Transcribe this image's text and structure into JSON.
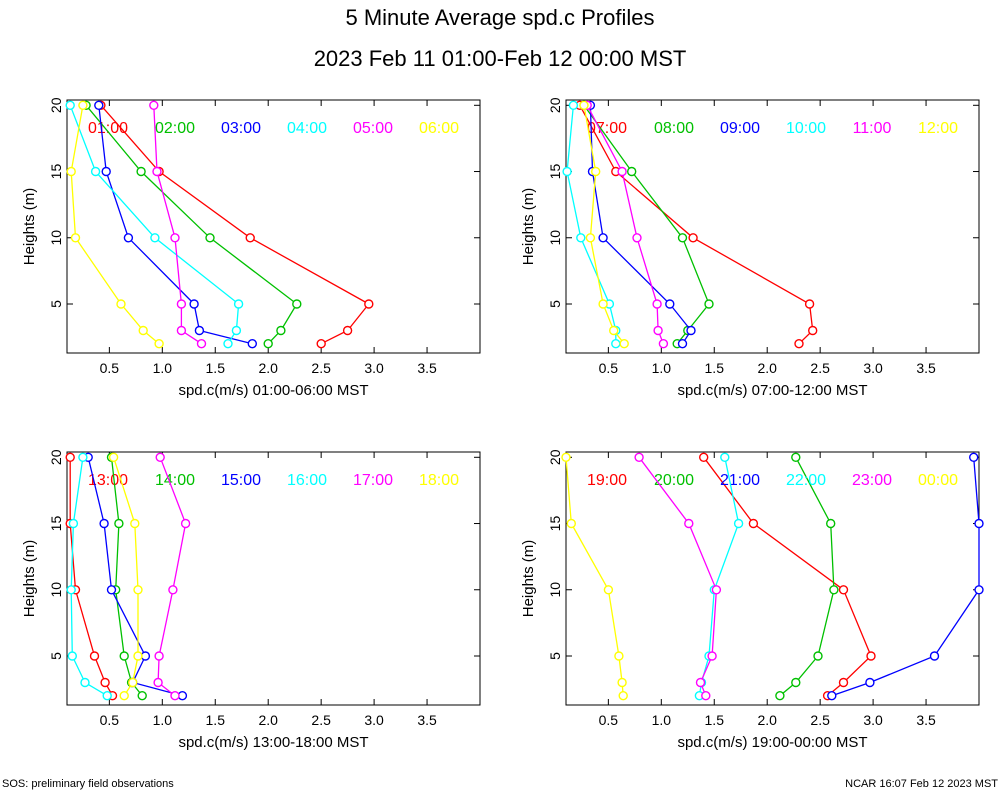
{
  "title": "5 Minute Average spd.c Profiles",
  "subtitle": "2023 Feb 11 01:00-Feb 12 00:00 MST",
  "footer_left": "SOS: preliminary field observations",
  "footer_right": "NCAR 16:07 Feb 12 2023 MST",
  "colors": [
    "#ff0000",
    "#00c000",
    "#0000ff",
    "#00ffff",
    "#ff00ff",
    "#ffff00"
  ],
  "chart_data": [
    {
      "type": "line",
      "xlabel": "spd.c(m/s) 01:00-06:00 MST",
      "ylabel": "Heights (m)",
      "xlim": [
        0.1,
        4.0
      ],
      "ylim": [
        1.3,
        20.4
      ],
      "xticks": [
        "0.5",
        "1.0",
        "1.5",
        "2.0",
        "2.5",
        "3.0",
        "3.5"
      ],
      "yticks": [
        "5",
        "10",
        "15",
        "20"
      ],
      "heights": [
        2,
        3,
        5,
        10,
        15,
        20
      ],
      "series": [
        {
          "name": "01:00",
          "values": [
            2.5,
            2.75,
            2.95,
            1.83,
            0.97,
            0.42
          ]
        },
        {
          "name": "02:00",
          "values": [
            2.0,
            2.12,
            2.27,
            1.45,
            0.8,
            0.28
          ]
        },
        {
          "name": "03:00",
          "values": [
            1.85,
            1.35,
            1.3,
            0.68,
            0.47,
            0.4
          ]
        },
        {
          "name": "04:00",
          "values": [
            1.62,
            1.7,
            1.72,
            0.93,
            0.37,
            0.13
          ]
        },
        {
          "name": "05:00",
          "values": [
            1.37,
            1.18,
            1.18,
            1.12,
            0.95,
            0.92
          ]
        },
        {
          "name": "06:00",
          "values": [
            0.97,
            0.82,
            0.61,
            0.18,
            0.14,
            0.25
          ]
        }
      ]
    },
    {
      "type": "line",
      "xlabel": "spd.c(m/s) 07:00-12:00 MST",
      "ylabel": "Heights (m)",
      "xlim": [
        0.1,
        4.0
      ],
      "ylim": [
        1.3,
        20.4
      ],
      "xticks": [
        "0.5",
        "1.0",
        "1.5",
        "2.0",
        "2.5",
        "3.0",
        "3.5"
      ],
      "yticks": [
        "5",
        "10",
        "15",
        "20"
      ],
      "heights": [
        2,
        3,
        5,
        10,
        15,
        20
      ],
      "series": [
        {
          "name": "07:00",
          "values": [
            2.3,
            2.43,
            2.4,
            1.3,
            0.57,
            0.23
          ]
        },
        {
          "name": "08:00",
          "values": [
            1.15,
            1.25,
            1.45,
            1.2,
            0.72,
            0.27
          ]
        },
        {
          "name": "09:00",
          "values": [
            1.2,
            1.28,
            1.08,
            0.45,
            0.35,
            0.33
          ]
        },
        {
          "name": "10:00",
          "values": [
            0.57,
            0.57,
            0.51,
            0.24,
            0.11,
            0.17
          ]
        },
        {
          "name": "11:00",
          "values": [
            1.02,
            0.97,
            0.96,
            0.77,
            0.63,
            0.3
          ]
        },
        {
          "name": "12:00",
          "values": [
            0.65,
            0.55,
            0.45,
            0.33,
            0.38,
            0.27
          ]
        }
      ]
    },
    {
      "type": "line",
      "xlabel": "spd.c(m/s) 13:00-18:00 MST",
      "ylabel": "Heights (m)",
      "xlim": [
        0.1,
        4.0
      ],
      "ylim": [
        1.3,
        20.4
      ],
      "xticks": [
        "0.5",
        "1.0",
        "1.5",
        "2.0",
        "2.5",
        "3.0",
        "3.5"
      ],
      "yticks": [
        "5",
        "10",
        "15",
        "20"
      ],
      "heights": [
        2,
        3,
        5,
        10,
        15,
        20
      ],
      "series": [
        {
          "name": "13:00",
          "values": [
            0.53,
            0.46,
            0.36,
            0.18,
            0.13,
            0.13
          ]
        },
        {
          "name": "14:00",
          "values": [
            0.81,
            0.71,
            0.64,
            0.56,
            0.59,
            0.52
          ]
        },
        {
          "name": "15:00",
          "values": [
            1.19,
            0.72,
            0.84,
            0.52,
            0.45,
            0.3
          ]
        },
        {
          "name": "16:00",
          "values": [
            0.48,
            0.27,
            0.15,
            0.14,
            0.16,
            0.25
          ]
        },
        {
          "name": "17:00",
          "values": [
            1.12,
            0.96,
            0.97,
            1.1,
            1.22,
            0.98
          ]
        },
        {
          "name": "18:00",
          "values": [
            0.64,
            0.72,
            0.77,
            0.77,
            0.74,
            0.54
          ]
        }
      ]
    },
    {
      "type": "line",
      "xlabel": "spd.c(m/s) 19:00-00:00 MST",
      "ylabel": "Heights (m)",
      "xlim": [
        0.1,
        4.0
      ],
      "ylim": [
        1.3,
        20.4
      ],
      "xticks": [
        "0.5",
        "1.0",
        "1.5",
        "2.0",
        "2.5",
        "3.0",
        "3.5"
      ],
      "yticks": [
        "5",
        "10",
        "15",
        "20"
      ],
      "heights": [
        2,
        3,
        5,
        10,
        15,
        20
      ],
      "series": [
        {
          "name": "19:00",
          "values": [
            2.57,
            2.72,
            2.98,
            2.72,
            1.87,
            1.4
          ]
        },
        {
          "name": "20:00",
          "values": [
            2.12,
            2.27,
            2.48,
            2.63,
            2.6,
            2.27
          ]
        },
        {
          "name": "21:00",
          "values": [
            2.61,
            2.97,
            3.58,
            4.0,
            4.0,
            3.95
          ]
        },
        {
          "name": "22:00",
          "values": [
            1.36,
            1.38,
            1.45,
            1.5,
            1.73,
            1.6
          ]
        },
        {
          "name": "23:00",
          "values": [
            1.42,
            1.37,
            1.48,
            1.52,
            1.26,
            0.79
          ]
        },
        {
          "name": "00:00",
          "values": [
            0.64,
            0.63,
            0.6,
            0.5,
            0.15,
            0.1
          ]
        }
      ]
    }
  ]
}
